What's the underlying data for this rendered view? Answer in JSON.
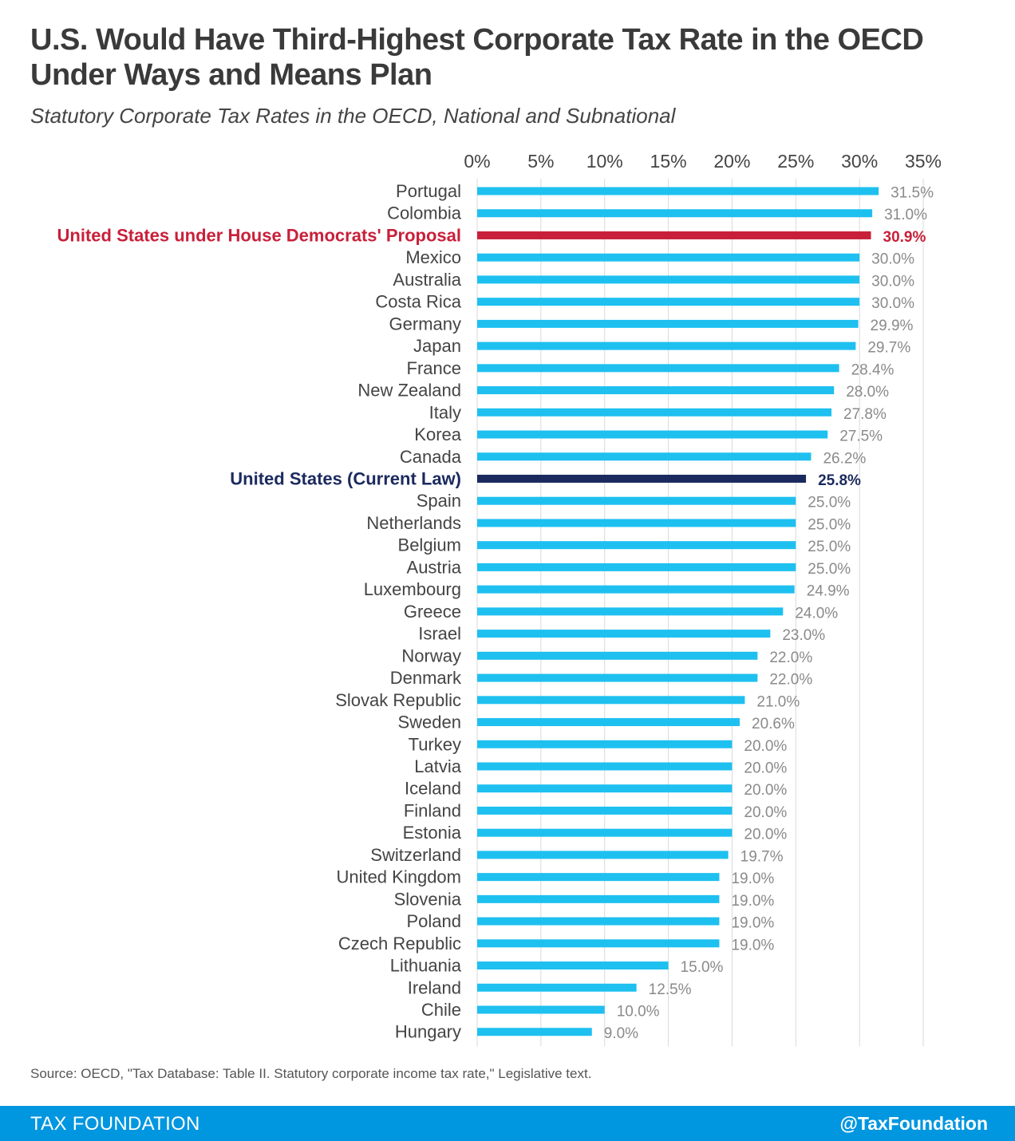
{
  "title": "U.S. Would Have Third-Highest Corporate Tax Rate in the OECD Under Ways and Means Plan",
  "subtitle": "Statutory Corporate Tax Rates in the OECD, National and Subnational",
  "source": "Source: OECD, \"Tax Database: Table II. Statutory corporate income tax rate,\" Legislative text.",
  "footer": {
    "brand": "TAX FOUNDATION",
    "handle": "@TaxFoundation"
  },
  "colors": {
    "bar": "#1ec0f0",
    "highlight_proposal": "#c8203a",
    "highlight_current": "#1b2a5e",
    "grid": "#d9d9d9",
    "value_label": "#8a8a8a",
    "footer": "#0096e0"
  },
  "chart_data": {
    "type": "bar",
    "orientation": "horizontal",
    "xlim": [
      0,
      35
    ],
    "x_ticks": [
      "0%",
      "5%",
      "10%",
      "15%",
      "20%",
      "25%",
      "30%",
      "35%"
    ],
    "x_tick_values": [
      0,
      5,
      10,
      15,
      20,
      25,
      30,
      35
    ],
    "grid": true,
    "categories": [
      "Portugal",
      "Colombia",
      "United States under House Democrats' Proposal",
      "Mexico",
      "Australia",
      "Costa Rica",
      "Germany",
      "Japan",
      "France",
      "New Zealand",
      "Italy",
      "Korea",
      "Canada",
      "United States (Current Law)",
      "Spain",
      "Netherlands",
      "Belgium",
      "Austria",
      "Luxembourg",
      "Greece",
      "Israel",
      "Norway",
      "Denmark",
      "Slovak Republic",
      "Sweden",
      "Turkey",
      "Latvia",
      "Iceland",
      "Finland",
      "Estonia",
      "Switzerland",
      "United Kingdom",
      "Slovenia",
      "Poland",
      "Czech Republic",
      "Lithuania",
      "Ireland",
      "Chile",
      "Hungary"
    ],
    "values": [
      31.5,
      31.0,
      30.9,
      30.0,
      30.0,
      30.0,
      29.9,
      29.7,
      28.4,
      28.0,
      27.8,
      27.5,
      26.2,
      25.8,
      25.0,
      25.0,
      25.0,
      25.0,
      24.9,
      24.0,
      23.0,
      22.0,
      22.0,
      21.0,
      20.6,
      20.0,
      20.0,
      20.0,
      20.0,
      20.0,
      19.7,
      19.0,
      19.0,
      19.0,
      19.0,
      15.0,
      12.5,
      10.0,
      9.0
    ],
    "value_labels": [
      "31.5%",
      "31.0%",
      "30.9%",
      "30.0%",
      "30.0%",
      "30.0%",
      "29.9%",
      "29.7%",
      "28.4%",
      "28.0%",
      "27.8%",
      "27.5%",
      "26.2%",
      "25.8%",
      "25.0%",
      "25.0%",
      "25.0%",
      "25.0%",
      "24.9%",
      "24.0%",
      "23.0%",
      "22.0%",
      "22.0%",
      "21.0%",
      "20.6%",
      "20.0%",
      "20.0%",
      "20.0%",
      "20.0%",
      "20.0%",
      "19.7%",
      "19.0%",
      "19.0%",
      "19.0%",
      "19.0%",
      "15.0%",
      "12.5%",
      "10.0%",
      "9.0%"
    ],
    "highlights": {
      "United States under House Democrats' Proposal": "proposal",
      "United States (Current Law)": "current"
    }
  }
}
